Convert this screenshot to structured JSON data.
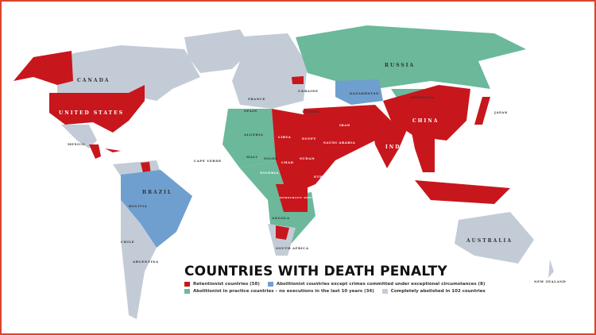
{
  "colors": {
    "retentionist": "#c8161d",
    "in_practice": "#6bb89b",
    "exceptional": "#6f9fcf",
    "abolished": "#c3ccd6",
    "frame": "#d9452b"
  },
  "title": "COUNTRIES WITH DEATH PENALTY",
  "legend": [
    {
      "key": "retentionist",
      "label": "Retentionist countries (58)"
    },
    {
      "key": "exceptional",
      "label": "Abolitionist countries except crimes committed under exceptional circumstances (8)"
    },
    {
      "key": "in_practice",
      "label": "Abolitionist in practice countries – no executions in the last 10 years (34)"
    },
    {
      "key": "abolished",
      "label": "Completely abolished in 102 countries"
    }
  ],
  "countries": {
    "canada": "CANADA",
    "usa": "UNITED STATES",
    "mexico": "MEXICO",
    "brazil": "BRAZIL",
    "bolivia": "BOLIVIA",
    "chile": "CHILE",
    "argentina": "ARGENTINA",
    "russia": "RUSSIA",
    "kazakhstan": "KAZAKHSTAN",
    "mongolia": "MONGOLIA",
    "china": "CHINA",
    "india": "INDIA",
    "iran": "IRAN",
    "saudi": "SAUDI ARABIA",
    "egypt": "EGYPT",
    "libya": "LIBYA",
    "algeria": "ALGERIA",
    "mali": "MALI",
    "niger": "NIGER",
    "chad": "CHAD",
    "sudan": "SUDAN",
    "nigeria": "NIGERIA",
    "ethiopia": "ETHIOPIA",
    "angola": "ANGOLA",
    "australia": "AUSTRALIA",
    "new_zealand": "NEW ZEALAND",
    "japan": "JAPAN",
    "turkey": "TURKEY",
    "ukraine": "UKRAINE",
    "spain": "SPAIN",
    "france": "FRANCE",
    "cape_verde": "CAPE VERDE",
    "south_africa": "SOUTH AFRICA",
    "drc": "DEMOCRATIC REPUBLIC OF THE CONGO"
  }
}
